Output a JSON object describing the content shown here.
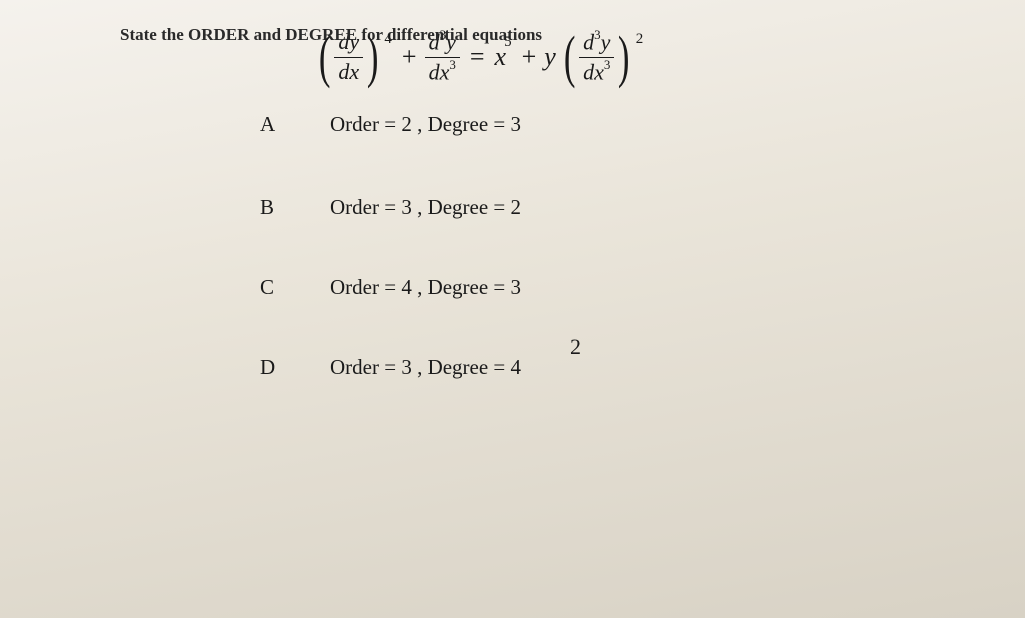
{
  "header": {
    "partial_text": "State the ORDER and DEGREE for differential equations"
  },
  "equation": {
    "term1": {
      "num": "dy",
      "den": "dx",
      "power": "4"
    },
    "plus1": "+",
    "term2": {
      "num": "d",
      "num_sup": "3",
      "num_var": "y",
      "den": "dx",
      "den_sup": "3"
    },
    "equals": "=",
    "term3": {
      "base": "x",
      "power": "5"
    },
    "plus2": "+",
    "term4_coef": "y",
    "term4": {
      "num": "d",
      "num_sup": "3",
      "num_var": "y",
      "den": "dx",
      "den_sup": "3",
      "power": "2"
    }
  },
  "options": [
    {
      "letter": "A",
      "text": "Order = 2 , Degree = 3"
    },
    {
      "letter": "B",
      "text": "Order = 3 , Degree = 2"
    },
    {
      "letter": "C",
      "text": "Order = 4 , Degree = 3"
    },
    {
      "letter": "D",
      "text": "Order = 3 , Degree = 4"
    }
  ],
  "page_number": "2"
}
